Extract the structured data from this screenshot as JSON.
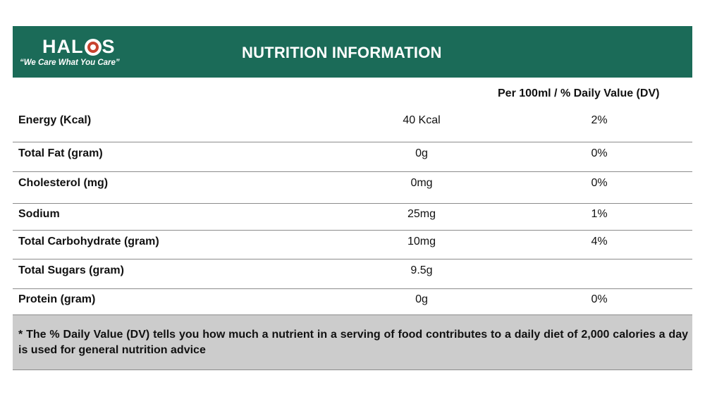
{
  "header": {
    "brand_part1": "HAL",
    "brand_part2": "S",
    "tagline": "“We Care What You Care”",
    "title": "NUTRITION  INFORMATION",
    "background_color": "#1b6b58",
    "logo_icon": "target-circle-icon"
  },
  "table": {
    "column_header": "Per 100ml / % Daily Value (DV)",
    "rows": [
      {
        "name": "Energy (Kcal)",
        "value": "40 Kcal",
        "dv": "2%"
      },
      {
        "name": "Total Fat (gram)",
        "value": "0g",
        "dv": "0%"
      },
      {
        "name": "Cholesterol (mg)",
        "value": "0mg",
        "dv": "0%"
      },
      {
        "name": "Sodium",
        "value": "25mg",
        "dv": "1%"
      },
      {
        "name": "Total Carbohydrate (gram)",
        "value": "10mg",
        "dv": "4%"
      },
      {
        "name": "Total Sugars (gram)",
        "value": "9.5g",
        "dv": ""
      },
      {
        "name": "Protein (gram)",
        "value": "0g",
        "dv": "0%"
      }
    ]
  },
  "footnote": {
    "text": "* The % Daily Value (DV) tells you how much a nutrient in a serving of food contributes to a daily diet of 2,000 calories a day is used for general nutrition advice",
    "background_color": "#cccccc"
  }
}
